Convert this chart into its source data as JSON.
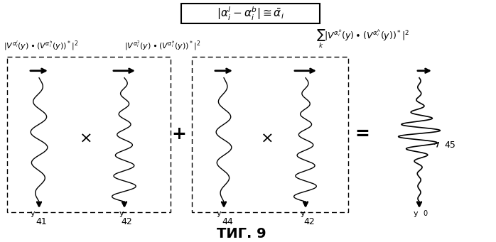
{
  "bg_color": "#ffffff",
  "fig_width": 6.98,
  "fig_height": 3.41,
  "dpi": 100,
  "title_box_text": "|α¹ᵢ - αᵀᵢ | ≅ α̅ᵢ",
  "caption": "ΤИГ. 9",
  "label41": "41",
  "label42": "42",
  "label44": "44",
  "label45": "45"
}
